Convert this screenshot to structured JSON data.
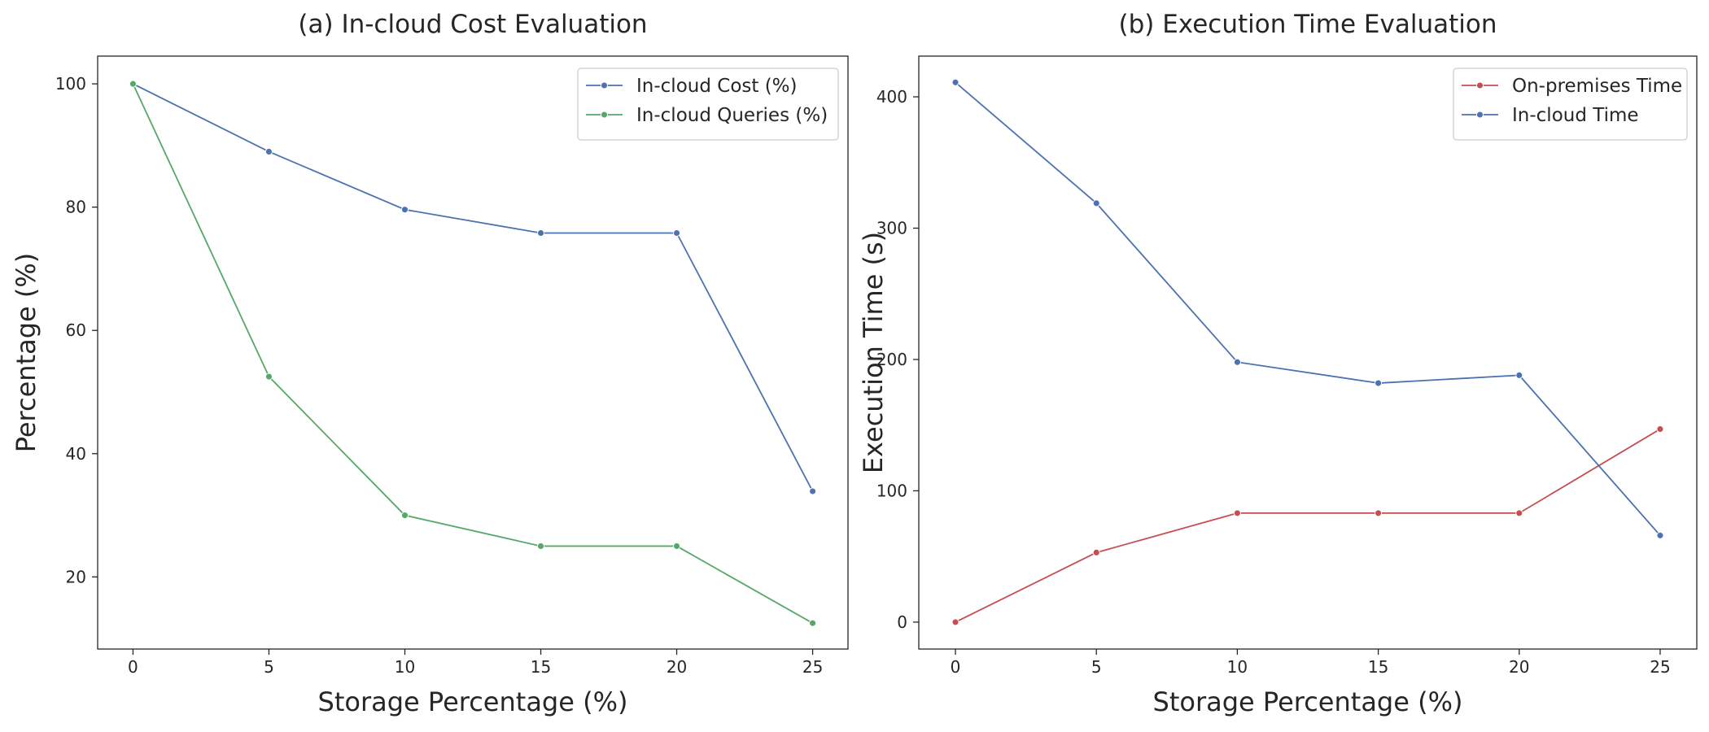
{
  "chart_data": [
    {
      "type": "line",
      "title": "(a) In-cloud Cost Evaluation",
      "xlabel": "Storage Percentage (%)",
      "ylabel": "Percentage (%)",
      "x": [
        0,
        5,
        10,
        15,
        20,
        25
      ],
      "xticks": [
        0,
        5,
        10,
        15,
        20,
        25
      ],
      "yticks": [
        20,
        40,
        60,
        80,
        100
      ],
      "xlim": [
        -1.3,
        26.3
      ],
      "ylim": [
        8.3,
        104.5
      ],
      "grid": false,
      "legend": "top-right",
      "series": [
        {
          "name": "In-cloud Cost (%)",
          "color": "#4c72b0",
          "values": [
            100,
            89,
            79.6,
            75.8,
            75.8,
            33.9
          ]
        },
        {
          "name": "In-cloud Queries (%)",
          "color": "#55a868",
          "values": [
            100,
            52.5,
            30,
            25,
            25,
            12.5
          ]
        }
      ]
    },
    {
      "type": "line",
      "title": "(b) Execution Time Evaluation",
      "xlabel": "Storage Percentage (%)",
      "ylabel": "Execution Time (s)",
      "x": [
        0,
        5,
        10,
        15,
        20,
        25
      ],
      "xticks": [
        0,
        5,
        10,
        15,
        20,
        25
      ],
      "yticks": [
        0,
        100,
        200,
        300,
        400
      ],
      "xlim": [
        -1.3,
        26.3
      ],
      "ylim": [
        -20.5,
        431
      ],
      "grid": false,
      "legend": "top-right",
      "series": [
        {
          "name": "On-premises Time",
          "color": "#c44e52",
          "values": [
            0,
            53,
            83,
            83,
            83,
            147
          ]
        },
        {
          "name": "In-cloud Time",
          "color": "#4c72b0",
          "values": [
            411,
            319,
            198,
            182,
            188,
            66
          ]
        }
      ]
    }
  ]
}
